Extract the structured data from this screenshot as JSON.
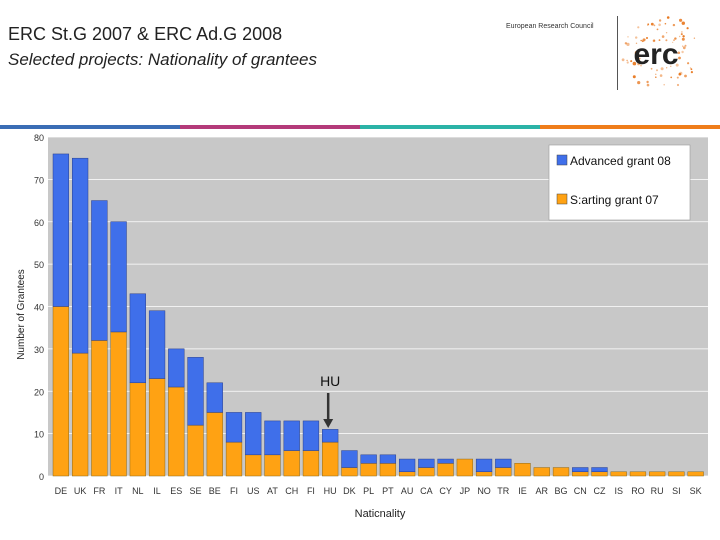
{
  "header": {
    "title": "ERC St.G 2007 & ERC Ad.G 2008",
    "subtitle": "Selected projects: Nationality of grantees",
    "org_name": "European Research Council",
    "logo_text": "erc"
  },
  "colors": {
    "stripes": [
      "#3a6db5",
      "#b43a7a",
      "#2bb3a7",
      "#ef7d1a"
    ],
    "advanced": "#3f6fea",
    "starting": "#ffa213",
    "plot_bg": "#c8c8c8",
    "logo": "#e8771e"
  },
  "chart_data": {
    "type": "bar",
    "stacked": true,
    "xlabel": "Naticnality",
    "ylabel": "Number of Grantees",
    "ylim": [
      0,
      80
    ],
    "yticks": [
      0,
      10,
      20,
      30,
      40,
      50,
      60,
      70,
      80
    ],
    "grid": true,
    "legend_position": "top-right",
    "categories": [
      "DE",
      "UK",
      "FR",
      "IT",
      "NL",
      "IL",
      "ES",
      "SE",
      "BE",
      "FI",
      "US",
      "AT",
      "CH",
      "FI",
      "HU",
      "DK",
      "PL",
      "PT",
      "AU",
      "CA",
      "CY",
      "JP",
      "NO",
      "TR",
      "IE",
      "AR",
      "BG",
      "CN",
      "CZ",
      "IS",
      "RO",
      "RU",
      "SI",
      "SK"
    ],
    "series": [
      {
        "name": "S:arting grant 07",
        "values": [
          40,
          29,
          32,
          34,
          22,
          23,
          21,
          12,
          15,
          8,
          5,
          5,
          6,
          6,
          8,
          2,
          3,
          3,
          1,
          2,
          3,
          4,
          1,
          2,
          3,
          2,
          2,
          1,
          1,
          1,
          1,
          1,
          1,
          1
        ]
      },
      {
        "name": "Advanced grant 08",
        "values": [
          36,
          46,
          33,
          26,
          21,
          16,
          9,
          16,
          7,
          7,
          10,
          8,
          7,
          7,
          3,
          4,
          2,
          2,
          3,
          2,
          1,
          0,
          3,
          2,
          0,
          0,
          0,
          1,
          1,
          0,
          0,
          0,
          0,
          0
        ]
      }
    ],
    "annotation": {
      "text": "HU",
      "category": "HU"
    }
  }
}
